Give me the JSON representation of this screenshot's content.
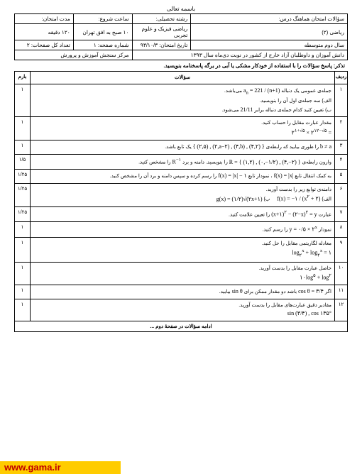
{
  "top_title": "باسمه تعالی",
  "header": {
    "r1c1": "سؤالات امتحان هماهنگ درس:",
    "r1c2": "رشته تحصیلی:",
    "r1c3": "ساعت شروع:",
    "r1c4": "مدت امتحان:",
    "r2c1": "ریاضی (۲)",
    "r2c2": "ریاضی فیزیک و علوم تجربی",
    "r2c3": "۱۰ صبح به افق تهران",
    "r2c4": "۱۲۰ دقیقه",
    "r3c1": "سال دوم متوسطه",
    "r3c2": "تاریخ امتحان: ۹۳/۱۰/۳",
    "r3c3": "شماره صفحه: ۱",
    "r3c4": "تعداد کل صفحات: ۲",
    "r4c1": "دانش آموزان و داوطلبان آزاد خارج از کشور در نوبت دی‌ماه سال ۱۳۹۳",
    "r4c2": "مرکز سنجش آموزش و پرورش"
  },
  "instruction": "تذکر: پاسخ سؤالات را با استفاده از خودکار مشکی یا آبی در برگه پاسخنامه بنویسید.",
  "cols": {
    "num": "ردیف",
    "body": "سؤالات",
    "score": "بارم"
  },
  "q": [
    {
      "n": "۱",
      "s": "۱",
      "b": "جمله‌ی عمومی یک دنباله <span class='math'>a<sub>n</sub> = 221 / (n+1)</span> می‌باشد.<br>الف) سه جمله‌ی اول آن را بنویسید.<br>ب) تعیین کنید کدام جمله‌ی دنباله برابر <span class='math'>21/11</span> می‌شود."
    },
    {
      "n": "۲",
      "s": "۱",
      "b": "مقدار عبارت مقابل را حساب کنید.<br><span class='math'>۲<sup>۱+√۵</sup> × ۲<sup>۱۲−√۵</sup> =</span>"
    },
    {
      "n": "۳",
      "s": "۱",
      "b": "<span class='math'>b ≠ a</span> را طوری بیابید که رابطه‌ی <span class='math'>{ (۲,۵) , (۲,a−۲) , (۴,b) , (۴,۲) }</span> یک تابع باشد."
    },
    {
      "n": "۴",
      "s": "۱/۵",
      "b": "وارون رابطه‌ی <span class='math'>R = { (۱,۲) , (۰,−۱/۲) , (۴,−۲) }</span> را بنویسید. دامنه و برد <span class='math'>R<sup>−۱</sup></span> را مشخص کنید."
    },
    {
      "n": "۵",
      "s": "۱/۲۵",
      "b": "به کمک انتقال تابع <span class='math'>f(x) = |x|</span> ، نمودار تابع <span class='math'>f(x) = |x| − ۱</span> را رسم کرده و سپس دامنه و برد آن را مشخص کنید."
    },
    {
      "n": "۶",
      "s": "۱/۲۵",
      "b": "دامنه‌ی توابع زیر را بدست آورید.<br>الف) <span class='math'>f(x) = −۱ / (x<sup>۲</sup> + ۲)</span> &nbsp;&nbsp;&nbsp; ب) <span class='math'>g(x) = (۱/۲)√(۲x+۱)</span>"
    },
    {
      "n": "۷",
      "s": "۱/۲۵",
      "b": "عبارت <span class='math'>(x+۱)<sup>۲</sup> − (۲−x)<sup>۲</sup> = y</span> را تعیین علامت کنید."
    },
    {
      "n": "۸",
      "s": "۱",
      "b": "نمودار <span class='math'>y = ۰/۵ × ۲<sup>x</sup></span> را رسم کنید."
    },
    {
      "n": "۹",
      "s": "۱",
      "b": "معادله لگاریتمی مقابل را حل کنید.<br><span class='math'>log<sub>۲</sub><sup>x</sup> + log<sub>۲</sub><sup>x</sup> = ۱</span>"
    },
    {
      "n": "۱۰",
      "s": "۱",
      "b": "حاصل عبارت مقابل را بدست آورید.<br><span class='math'>۱۰log<sup>۵</sup> + log<sup>۲</sup></span>"
    },
    {
      "n": "۱۱",
      "s": "۱",
      "b": "اگر <span class='math'>cos θ = ۳/۴</span> باشد دو مقدار ممکن برای <span class='math'>sin θ</span> بیابید."
    },
    {
      "n": "۱۲",
      "s": "۱",
      "b": "مقادیر دقیق عبارت‌های مقابل را بدست آورید.<br><span class='math'>sin (۳/۴) , cos ۱۳۵°</span>"
    }
  ],
  "continue": "ادامه سؤالات در صفحهٔ دوم ...",
  "footer": "www.gama.ir"
}
